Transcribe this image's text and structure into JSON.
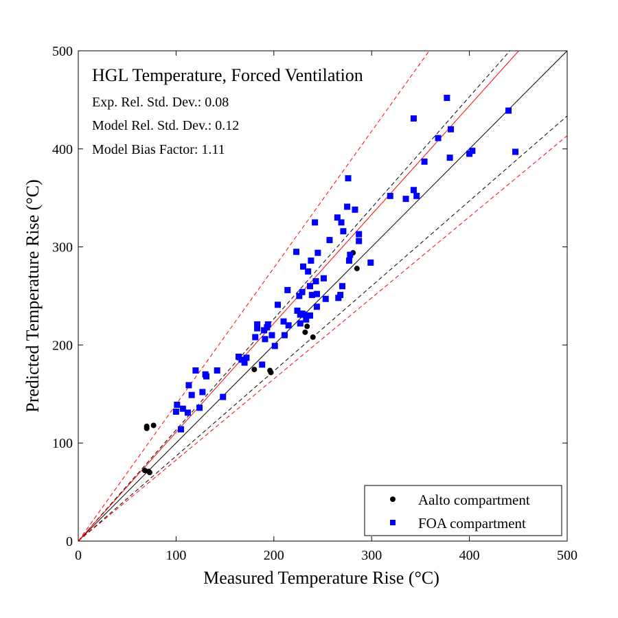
{
  "chart_data": {
    "type": "scatter",
    "title": "HGL Temperature, Forced Ventilation",
    "annotations": [
      "Exp. Rel. Std. Dev.: 0.08",
      "Model Rel. Std. Dev.: 0.12",
      "Model Bias Factor: 1.11"
    ],
    "xlabel": "Measured Temperature Rise (°C)",
    "ylabel": "Predicted Temperature Rise (°C)",
    "xlim": [
      0,
      500
    ],
    "ylim": [
      0,
      500
    ],
    "xticks": [
      0,
      100,
      200,
      300,
      400,
      500
    ],
    "yticks": [
      0,
      100,
      200,
      300,
      400,
      500
    ],
    "grid": false,
    "legend_placement": "bottom-right",
    "reference_lines": [
      {
        "slope": 1.0,
        "style": "solid",
        "color": "#000000"
      },
      {
        "slope": 1.1328,
        "style": "dashed",
        "color": "#000000"
      },
      {
        "slope": 0.8672,
        "style": "dashed",
        "color": "#000000"
      },
      {
        "slope": 1.11,
        "style": "solid",
        "color": "#ff0000"
      },
      {
        "slope": 1.3932,
        "style": "dashed",
        "color": "#ff0000"
      },
      {
        "slope": 0.8268,
        "style": "dashed",
        "color": "#ff0000"
      }
    ],
    "series": [
      {
        "name": "Aalto compartment",
        "marker": "circle",
        "color": "#000000",
        "points": [
          [
            68,
            72
          ],
          [
            70,
            115
          ],
          [
            70,
            117
          ],
          [
            72,
            71
          ],
          [
            73,
            70
          ],
          [
            77,
            118
          ],
          [
            180,
            175
          ],
          [
            196,
            174
          ],
          [
            197,
            172
          ],
          [
            232,
            213
          ],
          [
            234,
            219
          ],
          [
            240,
            208
          ],
          [
            278,
            292
          ],
          [
            281,
            294
          ],
          [
            285,
            278
          ]
        ]
      },
      {
        "name": "FOA compartment",
        "marker": "square",
        "color": "#0000ff",
        "points": [
          [
            100,
            132
          ],
          [
            101,
            139
          ],
          [
            105,
            114
          ],
          [
            107,
            135
          ],
          [
            112,
            131
          ],
          [
            113,
            159
          ],
          [
            116,
            149
          ],
          [
            120,
            174
          ],
          [
            124,
            136
          ],
          [
            127,
            152
          ],
          [
            130,
            170
          ],
          [
            131,
            168
          ],
          [
            142,
            174
          ],
          [
            148,
            147
          ],
          [
            164,
            188
          ],
          [
            167,
            185
          ],
          [
            170,
            182
          ],
          [
            172,
            187
          ],
          [
            181,
            208
          ],
          [
            183,
            217
          ],
          [
            183,
            221
          ],
          [
            188,
            180
          ],
          [
            190,
            215
          ],
          [
            191,
            206
          ],
          [
            193,
            218
          ],
          [
            194,
            221
          ],
          [
            198,
            210
          ],
          [
            201,
            199
          ],
          [
            204,
            241
          ],
          [
            210,
            224
          ],
          [
            211,
            210
          ],
          [
            214,
            256
          ],
          [
            215,
            220
          ],
          [
            223,
            295
          ],
          [
            224,
            235
          ],
          [
            226,
            250
          ],
          [
            227,
            222
          ],
          [
            227,
            231
          ],
          [
            229,
            254
          ],
          [
            229,
            232
          ],
          [
            230,
            280
          ],
          [
            231,
            231
          ],
          [
            233,
            226
          ],
          [
            235,
            275
          ],
          [
            237,
            230
          ],
          [
            237,
            260
          ],
          [
            238,
            286
          ],
          [
            239,
            251
          ],
          [
            242,
            325
          ],
          [
            243,
            265
          ],
          [
            244,
            252
          ],
          [
            244,
            239
          ],
          [
            245,
            294
          ],
          [
            251,
            268
          ],
          [
            253,
            247
          ],
          [
            257,
            307
          ],
          [
            265,
            330
          ],
          [
            266,
            248
          ],
          [
            268,
            251
          ],
          [
            269,
            325
          ],
          [
            270,
            260
          ],
          [
            271,
            316
          ],
          [
            275,
            341
          ],
          [
            276,
            370
          ],
          [
            277,
            286
          ],
          [
            278,
            292
          ],
          [
            283,
            338
          ],
          [
            287,
            306
          ],
          [
            287,
            313
          ],
          [
            299,
            284
          ],
          [
            319,
            352
          ],
          [
            335,
            349
          ],
          [
            343,
            358
          ],
          [
            343,
            431
          ],
          [
            346,
            352
          ],
          [
            354,
            387
          ],
          [
            368,
            411
          ],
          [
            377,
            452
          ],
          [
            380,
            391
          ],
          [
            381,
            420
          ],
          [
            400,
            395
          ],
          [
            403,
            398
          ],
          [
            440,
            439
          ],
          [
            447,
            397
          ]
        ]
      }
    ]
  }
}
